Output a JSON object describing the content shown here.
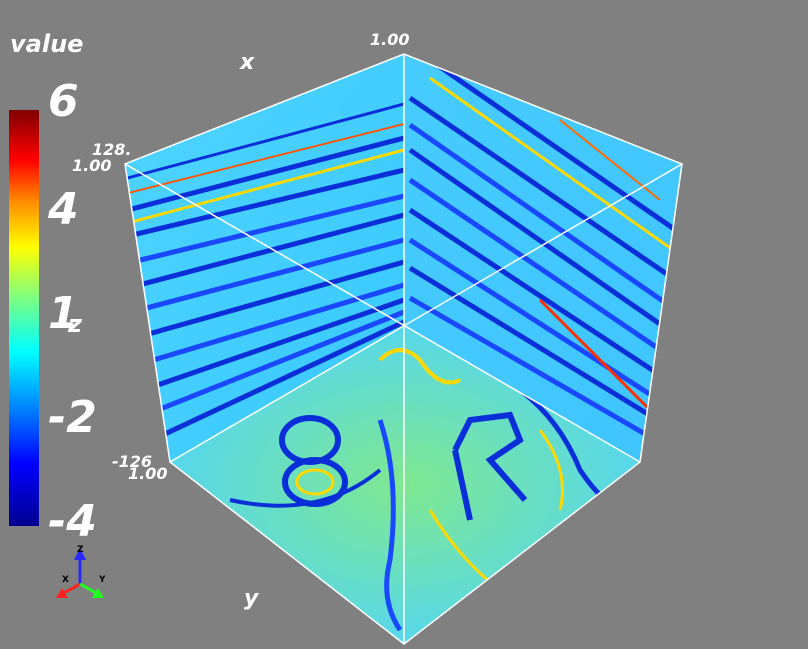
{
  "legend": {
    "title": "value",
    "ticks": [
      "6",
      "4",
      "1",
      "-2",
      "-4"
    ],
    "tick_suffix": "z",
    "colors": [
      "#800000",
      "#ff0000",
      "#ff8c00",
      "#ffff00",
      "#7fff7f",
      "#00ffff",
      "#0080ff",
      "#0000ff",
      "#00008f"
    ]
  },
  "cube": {
    "top_label": "1.00",
    "left_top_label_a": "128.",
    "left_top_label_b": "1.00",
    "left_bottom_label_a": "-126",
    "left_bottom_label_b": "1.00",
    "axis_x": "x",
    "axis_y": "y"
  },
  "orientation_axes": {
    "x": "X",
    "y": "Y",
    "z": "Z"
  },
  "background": "#808080"
}
